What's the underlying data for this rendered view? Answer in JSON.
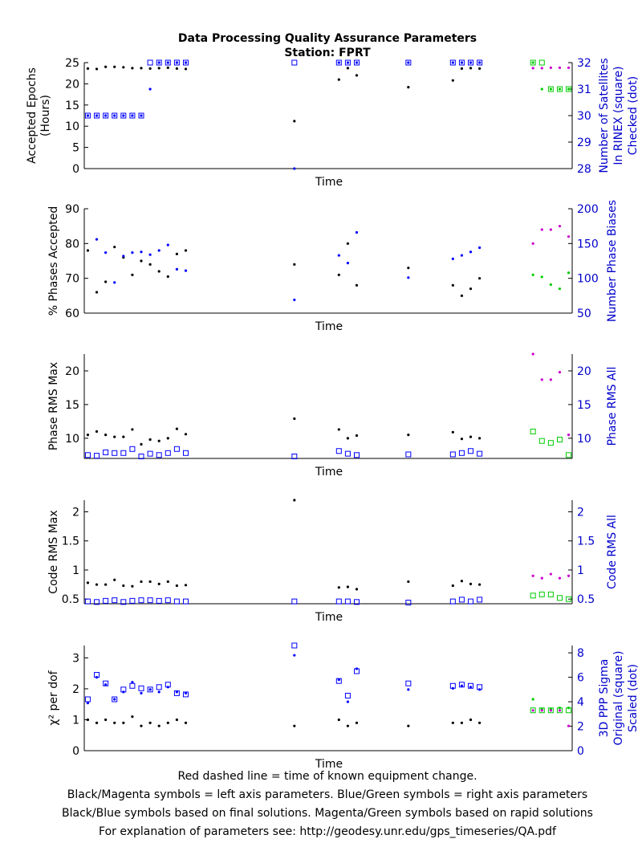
{
  "title": "Data Processing Quality Assurance Parameters",
  "subtitle": "Station: FPRT",
  "footer": [
    "Red dashed line = time of known equipment change.",
    "Black/Magenta symbols = left axis parameters. Blue/Green symbols = right axis parameters",
    "Black/Blue symbols based on final solutions.  Magenta/Green symbols based on rapid solutions",
    "For explanation of parameters see: http://geodesy.unr.edu/gps_timeseries/QA.pdf"
  ],
  "colors": {
    "final_left": "#000000",
    "final_right": "#0000ff",
    "rapid_left": "#cc00cc",
    "rapid_right": "#00cc00",
    "right_axis_text": "#0000cc"
  },
  "chart_data": [
    {
      "type": "scatter",
      "xlabel": "Time",
      "ylabel": [
        "Accepted Epochs",
        "(Hours)"
      ],
      "ylabel_right": [
        "Number of Satellites",
        "In RINEX (square)",
        "Checked (dot)"
      ],
      "ylim": [
        0,
        25
      ],
      "yticks": [
        0,
        5,
        10,
        15,
        20,
        25
      ],
      "ylim_right": [
        28,
        32
      ],
      "yticks_right": [
        28,
        29,
        30,
        31,
        32
      ],
      "x": [
        1,
        3.5,
        6,
        8.5,
        11,
        13.5,
        16,
        18.5,
        21,
        23.5,
        26,
        28.5,
        59,
        71.5,
        74,
        76.5,
        91,
        103.5,
        106,
        108.5,
        111
      ],
      "series": [
        {
          "kind": "final",
          "axis": "left",
          "marker": "dot",
          "values": [
            23.6,
            23.5,
            24,
            24,
            23.9,
            23.7,
            23.7,
            23.6,
            23.7,
            23.8,
            23.6,
            23.5,
            11.2,
            21,
            23.7,
            22,
            19.2,
            20.8,
            23.6,
            23.7,
            23.6
          ]
        },
        {
          "kind": "final",
          "axis": "right",
          "marker": "square",
          "values": [
            30,
            30,
            30,
            30,
            30,
            30,
            30,
            32,
            32,
            32,
            32,
            32,
            32,
            32,
            32,
            32,
            32,
            32,
            32,
            32,
            32
          ]
        },
        {
          "kind": "final",
          "axis": "right",
          "marker": "dot",
          "values": [
            30,
            30,
            30,
            30,
            30,
            30,
            30,
            31,
            32,
            32,
            32,
            32,
            28,
            32,
            32,
            32,
            32,
            32,
            32,
            32,
            32
          ]
        }
      ],
      "rapid": {
        "x": [
          126,
          128.5,
          131,
          133.5,
          136
        ],
        "left_dot": [
          23.7,
          23.7,
          23.8,
          23.8,
          23.8
        ],
        "right_square": [
          32,
          32,
          31,
          31,
          31
        ],
        "right_dot": [
          32,
          31,
          31,
          31,
          31
        ]
      }
    },
    {
      "type": "scatter",
      "xlabel": "Time",
      "ylabel": [
        "% Phases Accepted"
      ],
      "ylabel_right": [
        "Number Phase Biases"
      ],
      "ylim": [
        60,
        90
      ],
      "yticks": [
        60,
        70,
        80,
        90
      ],
      "ylim_right": [
        50,
        200
      ],
      "yticks_right": [
        50,
        100,
        150,
        200
      ],
      "x": [
        1,
        3.5,
        6,
        8.5,
        11,
        13.5,
        16,
        18.5,
        21,
        23.5,
        26,
        28.5,
        59,
        71.5,
        74,
        76.5,
        91,
        103.5,
        106,
        108.5,
        111
      ],
      "series": [
        {
          "kind": "final",
          "axis": "left",
          "marker": "dot",
          "values": [
            78,
            66,
            69,
            79,
            76,
            71,
            75,
            74,
            72,
            70.5,
            77,
            78,
            74,
            71,
            80,
            68,
            73,
            68,
            65,
            67,
            70
          ]
        },
        {
          "kind": "final",
          "axis": "right",
          "marker": "dot",
          "values": [
            null,
            156,
            137,
            94,
            132,
            137,
            138,
            134,
            140,
            148,
            113,
            111,
            69,
            133,
            122,
            166,
            101,
            128,
            133,
            138,
            144
          ]
        }
      ],
      "rapid": {
        "x": [
          126,
          128.5,
          131,
          133.5,
          136
        ],
        "left_dot": [
          80,
          84,
          84,
          85,
          82
        ],
        "right_dot": [
          105,
          102,
          91,
          85,
          108
        ]
      }
    },
    {
      "type": "scatter",
      "xlabel": "Time",
      "ylabel": [
        "Phase RMS Max"
      ],
      "ylabel_right": [
        "Phase RMS All"
      ],
      "ylim": [
        7,
        22.5
      ],
      "yticks": [
        10,
        15,
        20
      ],
      "ylim_right": [
        7,
        22.5
      ],
      "yticks_right": [
        10,
        15,
        20
      ],
      "x": [
        1,
        3.5,
        6,
        8.5,
        11,
        13.5,
        16,
        18.5,
        21,
        23.5,
        26,
        28.5,
        59,
        71.5,
        74,
        76.5,
        91,
        103.5,
        106,
        108.5,
        111
      ],
      "series": [
        {
          "kind": "final",
          "axis": "left",
          "marker": "dot",
          "values": [
            10.5,
            11,
            10.5,
            10.2,
            10.2,
            11.3,
            9.1,
            9.8,
            9.6,
            10,
            11.4,
            10.6,
            12.9,
            11.3,
            10,
            10.4,
            10.5,
            10.9,
            9.9,
            10.2,
            10
          ]
        },
        {
          "kind": "final",
          "axis": "right",
          "marker": "square",
          "values": [
            7.5,
            7.4,
            7.9,
            7.8,
            7.8,
            8.4,
            7.3,
            7.7,
            7.5,
            7.8,
            8.4,
            7.8,
            7.3,
            8.1,
            7.7,
            7.5,
            7.6,
            7.6,
            7.8,
            8.1,
            7.7
          ]
        }
      ],
      "rapid": {
        "x": [
          126,
          128.5,
          131,
          133.5,
          136
        ],
        "left_dot": [
          22.5,
          18.7,
          18.7,
          19.8,
          10.5
        ],
        "right_square": [
          11,
          9.6,
          9.3,
          9.8,
          7.5
        ]
      }
    },
    {
      "type": "scatter",
      "xlabel": "Time",
      "ylabel": [
        "Code RMS Max"
      ],
      "ylabel_right": [
        "Code RMS All"
      ],
      "ylim": [
        0.42,
        2.2
      ],
      "yticks": [
        0.5,
        1,
        1.5,
        2
      ],
      "ylim_right": [
        0.42,
        2.2
      ],
      "yticks_right": [
        0.5,
        1,
        1.5,
        2
      ],
      "x": [
        1,
        3.5,
        6,
        8.5,
        11,
        13.5,
        16,
        18.5,
        21,
        23.5,
        26,
        28.5,
        59,
        71.5,
        74,
        76.5,
        91,
        103.5,
        106,
        108.5,
        111
      ],
      "series": [
        {
          "kind": "final",
          "axis": "left",
          "marker": "dot",
          "values": [
            0.78,
            0.75,
            0.75,
            0.83,
            0.73,
            0.72,
            0.8,
            0.8,
            0.76,
            0.8,
            0.73,
            0.74,
            2.2,
            0.7,
            0.71,
            0.67,
            0.8,
            0.73,
            0.81,
            0.76,
            0.75
          ]
        },
        {
          "kind": "final",
          "axis": "right",
          "marker": "square",
          "values": [
            0.46,
            0.45,
            0.47,
            0.48,
            0.45,
            0.47,
            0.48,
            0.48,
            0.47,
            0.48,
            0.46,
            0.46,
            0.46,
            0.46,
            0.46,
            0.45,
            0.44,
            0.46,
            0.49,
            0.46,
            0.49
          ]
        }
      ],
      "rapid": {
        "x": [
          126,
          128.5,
          131,
          133.5,
          136
        ],
        "left_dot": [
          0.9,
          0.86,
          0.93,
          0.86,
          0.9
        ],
        "right_square": [
          0.56,
          0.58,
          0.58,
          0.52,
          0.5
        ]
      }
    },
    {
      "type": "scatter",
      "xlabel": "Time",
      "ylabel": [
        "χ² per dof"
      ],
      "ylabel_right": [
        "3D PPP Sigma",
        "Original (square)",
        "Scaled (dot)"
      ],
      "ylim": [
        0,
        3.4
      ],
      "yticks": [
        0,
        1,
        2,
        3
      ],
      "ylim_right": [
        0,
        8.6
      ],
      "yticks_right": [
        0,
        2,
        4,
        6,
        8
      ],
      "x": [
        1,
        3.5,
        6,
        8.5,
        11,
        13.5,
        16,
        18.5,
        21,
        23.5,
        26,
        28.5,
        59,
        71.5,
        74,
        76.5,
        91,
        103.5,
        106,
        108.5,
        111
      ],
      "series": [
        {
          "kind": "final",
          "axis": "left",
          "marker": "dot",
          "values": [
            1,
            0.9,
            1,
            0.9,
            0.9,
            1.1,
            0.8,
            0.9,
            0.8,
            0.9,
            1,
            0.9,
            0.8,
            1,
            0.8,
            0.9,
            0.8,
            0.9,
            0.9,
            1,
            0.9
          ]
        },
        {
          "kind": "final",
          "axis": "right",
          "marker": "square",
          "values": [
            4.2,
            6.2,
            5.5,
            4.2,
            5,
            5.3,
            5.1,
            5,
            5.2,
            5.4,
            4.7,
            4.6,
            8.6,
            5.7,
            4.5,
            6.5,
            5.5,
            5.3,
            5.4,
            5.3,
            5.2
          ]
        },
        {
          "kind": "final",
          "axis": "right",
          "marker": "dot",
          "values": [
            3.9,
            6,
            5.4,
            4.2,
            4.8,
            5.6,
            4.7,
            5,
            4.8,
            5.2,
            4.8,
            4.7,
            7.8,
            5.8,
            4,
            6.7,
            5,
            5.1,
            5.3,
            5.2,
            5
          ]
        },
        {
          "kind": "final",
          "axis": "left",
          "marker": "square",
          "values": [
            null,
            null,
            null,
            null,
            null,
            null,
            null,
            null,
            null,
            null,
            null,
            null,
            null,
            null,
            null,
            null,
            null,
            null,
            null,
            null,
            null
          ]
        }
      ],
      "rapid": {
        "x": [
          126,
          128.5,
          131,
          133.5,
          136
        ],
        "left_dot": [
          1.3,
          1.3,
          1.3,
          1.3,
          0.8
        ],
        "right_square": [
          3.3,
          3.3,
          3.3,
          3.3,
          3.3
        ],
        "right_dot": [
          4.2,
          3.4,
          3.4,
          3.5,
          3.5
        ]
      }
    }
  ]
}
